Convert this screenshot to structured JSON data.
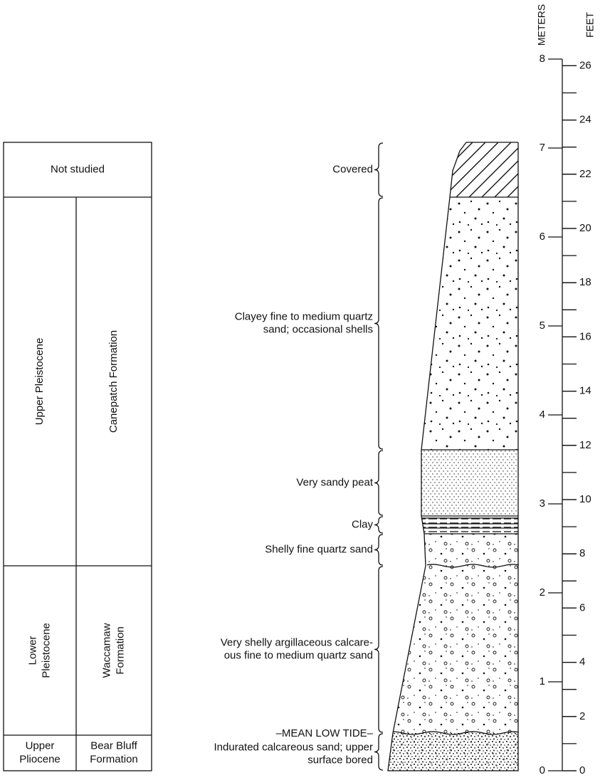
{
  "table": {
    "rows": [
      [
        [
          "Not studied"
        ]
      ],
      [
        [
          "Upper Pleistocene"
        ],
        [
          "Canepatch Formation"
        ]
      ],
      [
        [
          "Lower",
          "Pleistocene"
        ],
        [
          "Waccamaw",
          "Formation"
        ]
      ],
      [
        [
          "Upper",
          "Pliocene"
        ],
        [
          "Bear Bluff",
          "Formation"
        ]
      ]
    ]
  },
  "layers": [
    {
      "description": [
        "Covered"
      ]
    },
    {
      "description": [
        "Clayey fine to medium quartz",
        "sand; occasional shells"
      ]
    },
    {
      "description": [
        "Very sandy peat"
      ]
    },
    {
      "description": [
        "Clay"
      ]
    },
    {
      "description": [
        "Shelly fine quartz sand"
      ]
    },
    {
      "description": [
        "Very shelly argillaceous calcare-",
        "ous fine to medium quartz sand"
      ]
    },
    {
      "description": [
        "Indurated calcareous sand; upper",
        "surface bored"
      ]
    }
  ],
  "mean_low_tide": "–MEAN LOW TIDE–",
  "scale": {
    "meters_label": "METERS",
    "feet_label": "FEET",
    "meters_ticks": [
      0,
      1,
      2,
      3,
      4,
      5,
      6,
      7,
      8
    ],
    "feet_ticks": [
      0,
      2,
      4,
      6,
      8,
      10,
      12,
      14,
      16,
      18,
      20,
      22,
      24,
      26
    ]
  }
}
